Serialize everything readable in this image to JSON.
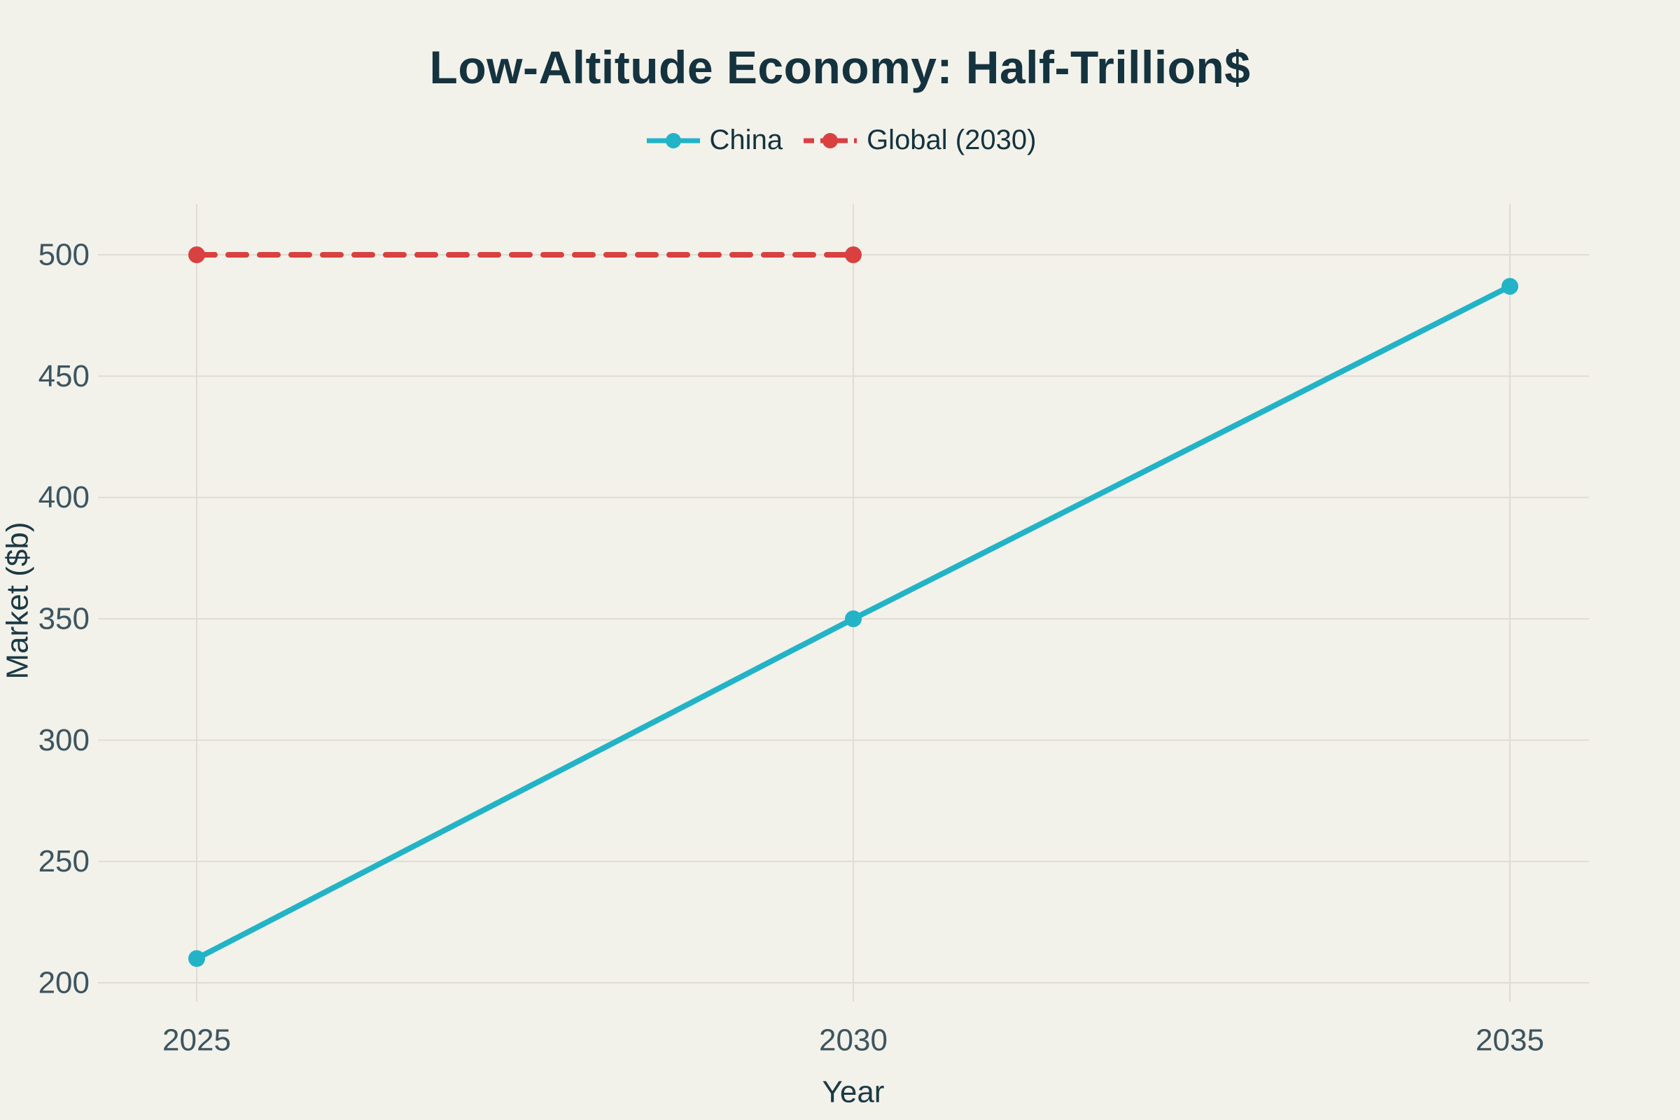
{
  "page": {
    "background": "#f2f1ea",
    "text_color": "#14333f"
  },
  "chart_data": {
    "type": "line",
    "title": "Low-Altitude Economy: Half-Trillion$",
    "xlabel": "Year",
    "ylabel": "Market ($b)",
    "x_ticks": [
      2025,
      2030,
      2035
    ],
    "y_ticks": [
      200,
      250,
      300,
      350,
      400,
      450,
      500
    ],
    "ylim": [
      185,
      515
    ],
    "xlim": [
      2024.25,
      2035.6
    ],
    "grid": true,
    "legend_position": "top-center",
    "grid_color": "#dedcd4",
    "tick_color": "#3d5560",
    "axis_title_color": "#1c3a46",
    "series": [
      {
        "name": "China",
        "x": [
          2025,
          2030,
          2035
        ],
        "values": [
          210,
          350,
          487
        ],
        "color": "#23b3c7",
        "style": "solid",
        "marker": "circle"
      },
      {
        "name": "Global (2030)",
        "x": [
          2025,
          2030
        ],
        "values": [
          500,
          500
        ],
        "color": "#d94040",
        "style": "dashed",
        "marker": "circle"
      }
    ]
  }
}
